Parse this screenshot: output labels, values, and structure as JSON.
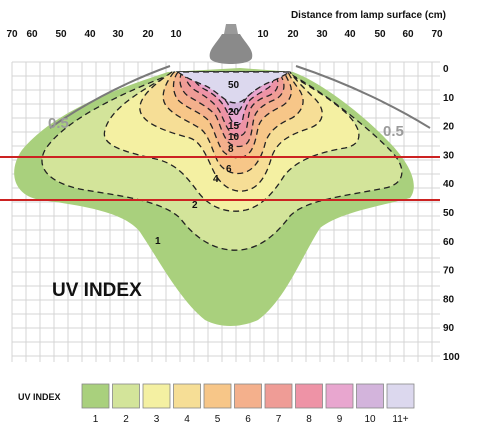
{
  "diagram": {
    "axis_title": "Distance from lamp surface (cm)",
    "main_label": "UV INDEX",
    "top_ticks": [
      "70",
      "60",
      "50",
      "40",
      "30",
      "20",
      "10",
      "10",
      "20",
      "30",
      "40",
      "50",
      "60",
      "70"
    ],
    "right_ticks": [
      "0",
      "10",
      "20",
      "30",
      "40",
      "50",
      "60",
      "70",
      "80",
      "90",
      "100"
    ],
    "contour_labels": {
      "c50": "50",
      "c20": "20",
      "c15": "15",
      "c10": "10",
      "c8": "8",
      "c6": "6",
      "c4": "4",
      "c2": "2",
      "c1": "1",
      "c05_left": "0.5",
      "c05_right": "0.5"
    }
  },
  "legend": {
    "title": "UV INDEX",
    "items": [
      {
        "label": "1",
        "color": "#a9d07d"
      },
      {
        "label": "2",
        "color": "#d3e49a"
      },
      {
        "label": "3",
        "color": "#f4f0a2"
      },
      {
        "label": "4",
        "color": "#f6de96"
      },
      {
        "label": "5",
        "color": "#f7c688"
      },
      {
        "label": "6",
        "color": "#f4b08c"
      },
      {
        "label": "7",
        "color": "#ef9c96"
      },
      {
        "label": "8",
        "color": "#ee93a6"
      },
      {
        "label": "9",
        "color": "#e8a6cf"
      },
      {
        "label": "10",
        "color": "#d3b4dc"
      },
      {
        "label": "11+",
        "color": "#dcd8ee"
      }
    ]
  },
  "colors": {
    "grid": "#d4d4d4",
    "reference_lines": "#cc2222",
    "contour_lines": "#222222"
  }
}
